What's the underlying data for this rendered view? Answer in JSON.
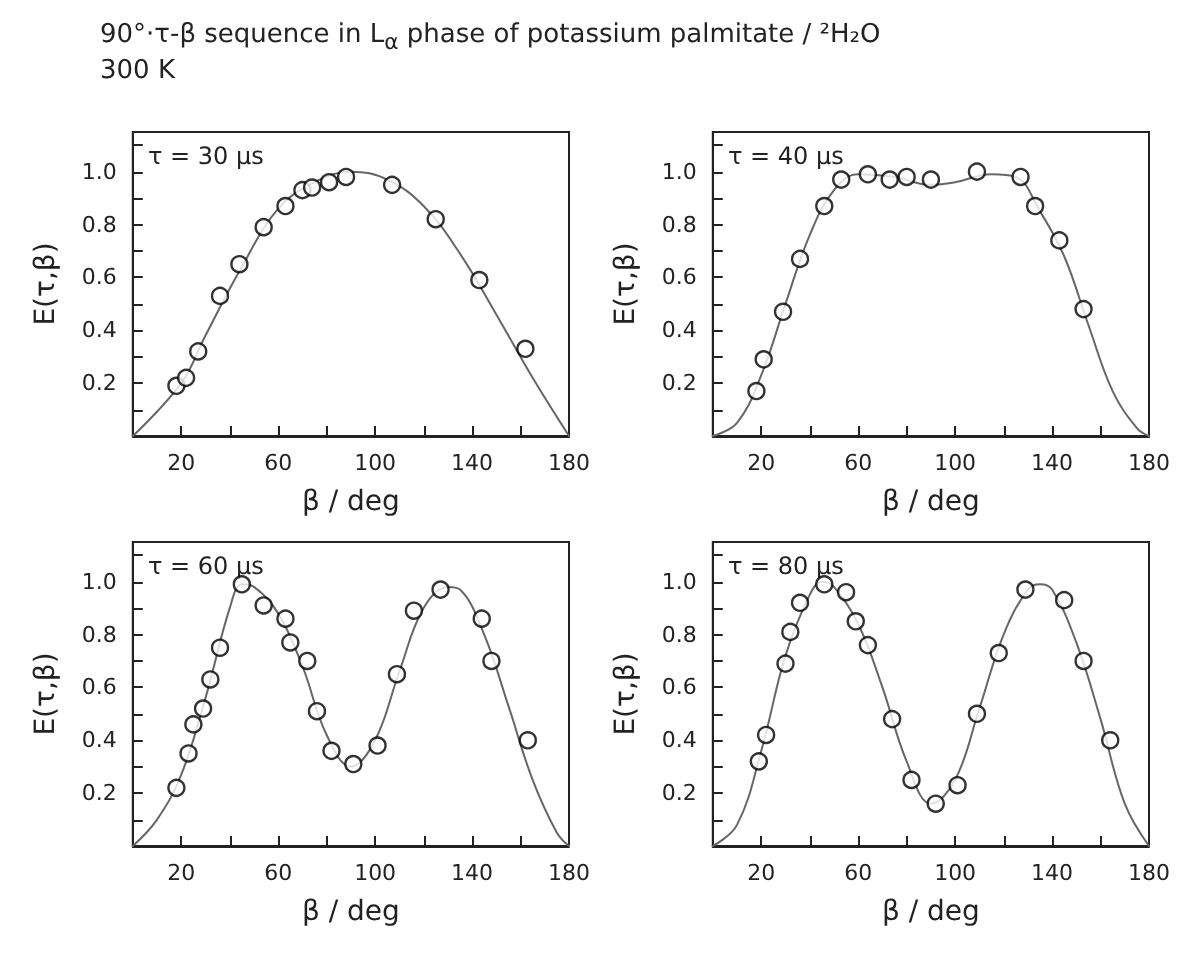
{
  "chart_data": [
    {
      "type": "scatter",
      "title": "90°·τ-β sequence in L$_{α}$ phase of potassium palmitate / ²H₂O",
      "subtitle": "300 K",
      "annotations": [
        "τ = 30 μs"
      ],
      "xlabel": "β / deg",
      "ylabel": "E(τ,β)",
      "xlim": [
        0,
        180
      ],
      "ylim": [
        0,
        1.15
      ],
      "xticks": [
        20,
        {
          "value": 40,
          "label": null
        },
        60,
        {
          "value": 80,
          "label": null
        },
        100,
        {
          "value": 120,
          "label": null
        },
        140,
        {
          "value": 160,
          "label": null
        },
        180
      ],
      "yticks": [
        {
          "value": 0.1,
          "label": null
        },
        0.2,
        {
          "value": 0.3,
          "label": null
        },
        0.4,
        {
          "value": 0.5,
          "label": null
        },
        0.6,
        {
          "value": 0.7,
          "label": null
        },
        0.8,
        {
          "value": 0.9,
          "label": null
        },
        {
          "value": 1.0,
          "label": "1.0"
        },
        {
          "value": 1.1,
          "label": null
        }
      ],
      "grid": false,
      "series": [
        {
          "marker": "circle",
          "color": "#000000",
          "x": [
            18,
            22,
            27,
            36,
            44,
            54,
            63,
            70,
            74,
            81,
            88,
            107,
            125,
            143,
            162
          ],
          "values": [
            0.19,
            0.22,
            0.32,
            0.53,
            0.65,
            0.79,
            0.87,
            0.93,
            0.94,
            0.96,
            0.98,
            0.95,
            0.82,
            0.59,
            0.33
          ]
        },
        {
          "type": "line",
          "marker": "none",
          "line_style": "solid",
          "color": "#666666",
          "x": [
            0,
            20,
            30,
            45,
            60,
            75,
            90,
            105,
            120,
            135,
            150,
            165,
            180
          ],
          "values": [
            0,
            0.2,
            0.38,
            0.64,
            0.86,
            0.96,
            1.0,
            0.97,
            0.87,
            0.69,
            0.46,
            0.22,
            0
          ]
        }
      ]
    },
    {
      "type": "scatter",
      "annotations": [
        "τ = 40 μs"
      ],
      "xlabel": "β / deg",
      "ylabel": "E(τ,β)",
      "xlim": [
        0,
        180
      ],
      "ylim": [
        0,
        1.15
      ],
      "xticks": [
        20,
        {
          "value": 40,
          "label": null
        },
        60,
        {
          "value": 80,
          "label": null
        },
        100,
        {
          "value": 120,
          "label": null
        },
        140,
        {
          "value": 160,
          "label": null
        },
        180
      ],
      "yticks": [
        {
          "value": 0.1,
          "label": null
        },
        0.2,
        {
          "value": 0.3,
          "label": null
        },
        0.4,
        {
          "value": 0.5,
          "label": null
        },
        0.6,
        {
          "value": 0.7,
          "label": null
        },
        0.8,
        {
          "value": 0.9,
          "label": null
        },
        {
          "value": 1.0,
          "label": "1.0"
        },
        {
          "value": 1.1,
          "label": null
        }
      ],
      "grid": false,
      "series": [
        {
          "marker": "circle",
          "color": "#000000",
          "x": [
            18,
            21,
            29,
            36,
            46,
            53,
            64,
            73,
            80,
            90,
            109,
            127,
            133,
            143,
            153
          ],
          "values": [
            0.17,
            0.29,
            0.47,
            0.67,
            0.87,
            0.97,
            0.99,
            0.97,
            0.98,
            0.97,
            1.0,
            0.98,
            0.87,
            0.74,
            0.48
          ]
        },
        {
          "type": "line",
          "marker": "none",
          "line_style": "solid",
          "color": "#666666",
          "x": [
            0,
            10,
            20,
            30,
            40,
            50,
            60,
            75,
            90,
            100,
            115,
            125,
            135,
            145,
            155,
            165,
            175,
            180
          ],
          "values": [
            0,
            0.05,
            0.23,
            0.5,
            0.76,
            0.93,
            0.99,
            0.98,
            0.95,
            0.96,
            0.99,
            0.98,
            0.85,
            0.68,
            0.42,
            0.17,
            0.03,
            0
          ]
        }
      ]
    },
    {
      "type": "scatter",
      "annotations": [
        "τ = 60 μs"
      ],
      "xlabel": "β / deg",
      "ylabel": "E(τ,β)",
      "xlim": [
        0,
        180
      ],
      "ylim": [
        0,
        1.15
      ],
      "xticks": [
        20,
        {
          "value": 40,
          "label": null
        },
        60,
        {
          "value": 80,
          "label": null
        },
        100,
        {
          "value": 120,
          "label": null
        },
        140,
        {
          "value": 160,
          "label": null
        },
        180
      ],
      "yticks": [
        {
          "value": 0.1,
          "label": null
        },
        0.2,
        {
          "value": 0.3,
          "label": null
        },
        0.4,
        {
          "value": 0.5,
          "label": null
        },
        0.6,
        {
          "value": 0.7,
          "label": null
        },
        0.8,
        {
          "value": 0.9,
          "label": null
        },
        {
          "value": 1.0,
          "label": "1.0"
        },
        {
          "value": 1.1,
          "label": null
        }
      ],
      "grid": false,
      "series": [
        {
          "marker": "circle",
          "color": "#000000",
          "x": [
            18,
            23,
            25,
            29,
            32,
            36,
            45,
            54,
            63,
            65,
            72,
            76,
            82,
            91,
            101,
            109,
            116,
            127,
            144,
            148,
            163
          ],
          "values": [
            0.22,
            0.35,
            0.46,
            0.52,
            0.63,
            0.75,
            0.99,
            0.91,
            0.86,
            0.77,
            0.7,
            0.51,
            0.36,
            0.31,
            0.38,
            0.65,
            0.89,
            0.97,
            0.86,
            0.7,
            0.4
          ]
        },
        {
          "type": "line",
          "marker": "none",
          "line_style": "solid",
          "color": "#666666",
          "x": [
            0,
            10,
            20,
            30,
            40,
            45,
            50,
            60,
            70,
            80,
            90,
            100,
            110,
            120,
            130,
            135,
            145,
            155,
            165,
            175,
            180
          ],
          "values": [
            0,
            0.1,
            0.27,
            0.56,
            0.9,
            0.99,
            0.98,
            0.88,
            0.68,
            0.42,
            0.3,
            0.4,
            0.66,
            0.9,
            0.98,
            0.97,
            0.8,
            0.53,
            0.25,
            0.05,
            0
          ]
        }
      ]
    },
    {
      "type": "scatter",
      "annotations": [
        "τ = 80 μs"
      ],
      "xlabel": "β / deg",
      "ylabel": "E(τ,β)",
      "xlim": [
        0,
        180
      ],
      "ylim": [
        0,
        1.15
      ],
      "xticks": [
        20,
        {
          "value": 40,
          "label": null
        },
        60,
        {
          "value": 80,
          "label": null
        },
        100,
        {
          "value": 120,
          "label": null
        },
        140,
        {
          "value": 160,
          "label": null
        },
        180
      ],
      "yticks": [
        {
          "value": 0.1,
          "label": null
        },
        0.2,
        {
          "value": 0.3,
          "label": null
        },
        0.4,
        {
          "value": 0.5,
          "label": null
        },
        0.6,
        {
          "value": 0.7,
          "label": null
        },
        0.8,
        {
          "value": 0.9,
          "label": null
        },
        {
          "value": 1.0,
          "label": "1.0"
        },
        {
          "value": 1.1,
          "label": null
        }
      ],
      "grid": false,
      "series": [
        {
          "marker": "circle",
          "color": "#000000",
          "x": [
            19,
            22,
            30,
            32,
            36,
            46,
            55,
            59,
            64,
            74,
            82,
            92,
            101,
            109,
            118,
            129,
            145,
            153,
            164
          ],
          "values": [
            0.32,
            0.42,
            0.69,
            0.81,
            0.92,
            0.99,
            0.96,
            0.85,
            0.76,
            0.48,
            0.25,
            0.16,
            0.23,
            0.5,
            0.73,
            0.97,
            0.93,
            0.7,
            0.4
          ]
        },
        {
          "type": "line",
          "marker": "none",
          "line_style": "solid",
          "color": "#666666",
          "x": [
            0,
            10,
            20,
            30,
            40,
            45,
            50,
            60,
            70,
            80,
            90,
            100,
            110,
            120,
            130,
            135,
            140,
            150,
            160,
            170,
            180
          ],
          "values": [
            0,
            0.08,
            0.36,
            0.72,
            0.95,
            1.0,
            0.98,
            0.84,
            0.6,
            0.32,
            0.16,
            0.25,
            0.52,
            0.8,
            0.97,
            0.99,
            0.97,
            0.77,
            0.48,
            0.16,
            0
          ]
        }
      ]
    }
  ]
}
